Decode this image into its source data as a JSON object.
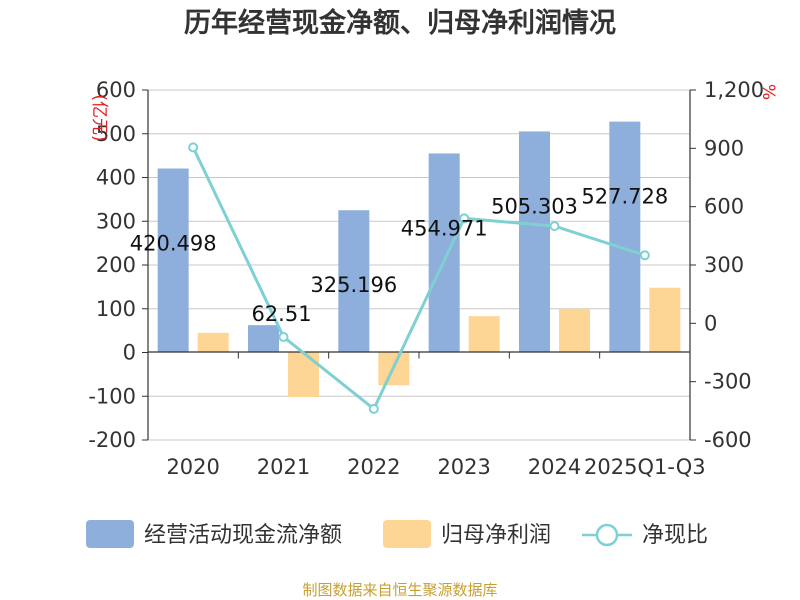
{
  "chart_data": {
    "type": "bar+line",
    "title": "历年经营现金净额、归母净利润情况",
    "categories": [
      "2020",
      "2021",
      "2022",
      "2023",
      "2024",
      "2025Q1-Q3"
    ],
    "series": [
      {
        "name": "经营活动现金流净额",
        "type": "bar",
        "axis": "left",
        "color": "#8eaedc",
        "values": [
          420.498,
          62.51,
          325.196,
          454.971,
          505.303,
          527.728
        ],
        "labels": [
          "420.498",
          "62.51",
          "325.196",
          "454.971",
          "505.303",
          "527.728"
        ]
      },
      {
        "name": "归母净利润",
        "type": "bar",
        "axis": "left",
        "color": "#fdd595",
        "values": [
          45,
          -102,
          -75,
          83,
          100,
          148
        ]
      },
      {
        "name": "净现比",
        "type": "line",
        "axis": "right",
        "color": "#7fd0d3",
        "values": [
          905,
          -70,
          -440,
          540,
          500,
          350
        ]
      }
    ],
    "y_left": {
      "unit": "(亿元)",
      "ylim": [
        -200,
        600
      ],
      "ticks": [
        600,
        500,
        400,
        300,
        200,
        100,
        0,
        -100,
        -200
      ],
      "tick_labels": [
        "600",
        "500",
        "400",
        "300",
        "200",
        "100",
        "0",
        "-100",
        "-200"
      ]
    },
    "y_right": {
      "unit": "%",
      "ylim": [
        -600,
        1200
      ],
      "ticks": [
        1200,
        900,
        600,
        300,
        0,
        -300,
        -600
      ],
      "tick_labels": [
        "1,200",
        "900",
        "600",
        "300",
        "0",
        "-300",
        "-600"
      ]
    },
    "legend_position": "bottom",
    "source": "制图数据来自恒生聚源数据库"
  }
}
